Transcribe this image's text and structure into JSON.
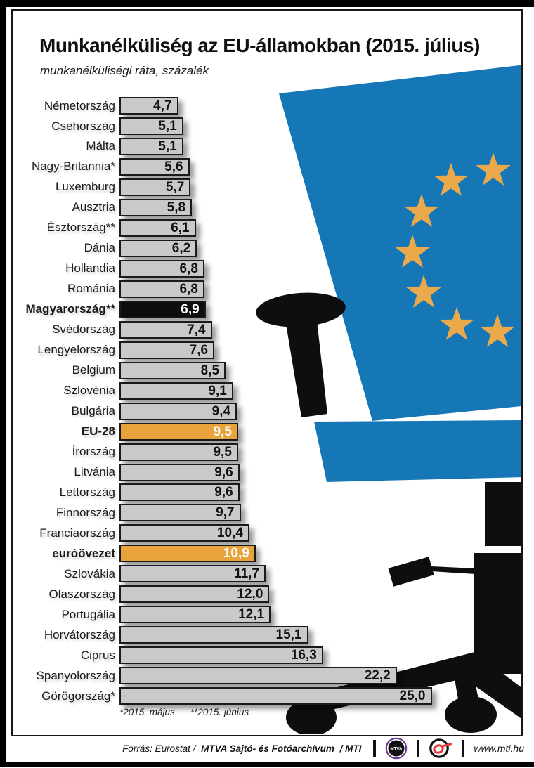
{
  "page": {
    "title": "Munkanélküliség az EU-államokban (2015. július)",
    "subtitle": "munkanélküliségi ráta, százalék",
    "footnote_may": "*2015. május",
    "footnote_june": "**2015. június"
  },
  "chart_data": {
    "type": "bar",
    "orientation": "horizontal",
    "title": "Munkanélküliség az EU-államokban (2015. július)",
    "xlabel": "munkanélküliségi ráta, százalék",
    "unit": "%",
    "xlim": [
      0,
      25.5
    ],
    "grid": false,
    "legend": false,
    "categories": [
      "Németország",
      "Csehország",
      "Málta",
      "Nagy-Britannia*",
      "Luxemburg",
      "Ausztria",
      "Észtország**",
      "Dánia",
      "Hollandia",
      "Románia",
      "Magyarország**",
      "Svédország",
      "Lengyelország",
      "Belgium",
      "Szlovénia",
      "Bulgária",
      "EU-28",
      "Írország",
      "Litvánia",
      "Lettország",
      "Finnország",
      "Franciaország",
      "euróövezet",
      "Szlovákia",
      "Olaszország",
      "Portugália",
      "Horvátország",
      "Ciprus",
      "Spanyolország",
      "Görögország*"
    ],
    "values": [
      4.7,
      5.1,
      5.1,
      5.6,
      5.7,
      5.8,
      6.1,
      6.2,
      6.8,
      6.8,
      6.9,
      7.4,
      7.6,
      8.5,
      9.1,
      9.4,
      9.5,
      9.5,
      9.6,
      9.6,
      9.7,
      10.4,
      10.9,
      11.7,
      12.0,
      12.1,
      15.1,
      16.3,
      22.2,
      25.0
    ],
    "value_labels": [
      "4,7",
      "5,1",
      "5,1",
      "5,6",
      "5,7",
      "5,8",
      "6,1",
      "6,2",
      "6,8",
      "6,8",
      "6,9",
      "7,4",
      "7,6",
      "8,5",
      "9,1",
      "9,4",
      "9,5",
      "9,5",
      "9,6",
      "9,6",
      "9,7",
      "10,4",
      "10,9",
      "11,7",
      "12,0",
      "12,1",
      "15,1",
      "16,3",
      "22,2",
      "25,0"
    ],
    "styles": [
      "gray",
      "gray",
      "gray",
      "gray",
      "gray",
      "gray",
      "gray",
      "gray",
      "gray",
      "gray",
      "black",
      "gray",
      "gray",
      "gray",
      "gray",
      "gray",
      "orange",
      "gray",
      "gray",
      "gray",
      "gray",
      "gray",
      "orange",
      "gray",
      "gray",
      "gray",
      "gray",
      "gray",
      "gray",
      "gray"
    ],
    "bold": [
      false,
      false,
      false,
      false,
      false,
      false,
      false,
      false,
      false,
      false,
      true,
      false,
      false,
      false,
      false,
      false,
      true,
      false,
      false,
      false,
      false,
      false,
      true,
      false,
      false,
      false,
      false,
      false,
      false,
      false
    ]
  },
  "footer": {
    "source_prefix": "Forrás: Eurostat /",
    "source_main": "MTVA Sajtó- és Fotóarchívum",
    "source_suffix": "/ MTI",
    "mtva_logo_text": "MTVA",
    "website": "www.mti.hu"
  },
  "colors": {
    "accent_orange": "#e8a33c",
    "bar_gray": "#c9c9cb",
    "bar_border": "#1a1a1a",
    "highlight_black": "#0d0d0d",
    "eu_blue": "#1577b5",
    "star_gold": "#eaa94b",
    "mtva_purple": "#6a3b8f",
    "mti_red": "#e03a3a"
  }
}
